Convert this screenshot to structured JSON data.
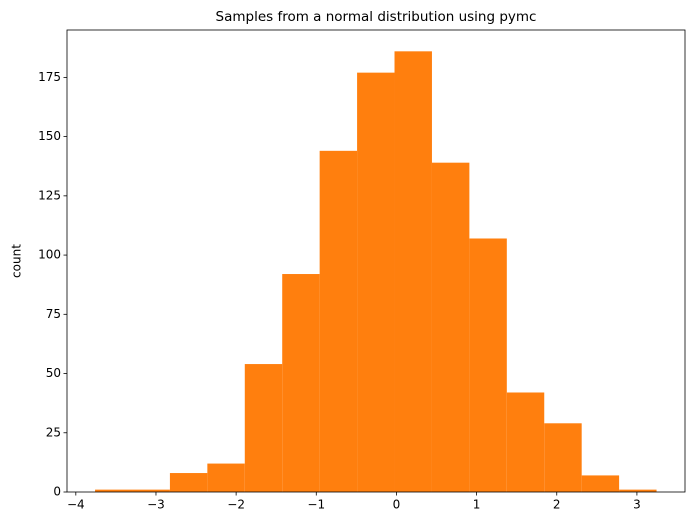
{
  "chart_data": {
    "type": "histogram",
    "title": "Samples from a normal distribution using pymc",
    "ylabel": "count",
    "bins": [
      -3.76,
      -3.293,
      -2.826,
      -2.359,
      -1.892,
      -1.425,
      -0.958,
      -0.491,
      -0.024,
      0.443,
      0.91,
      1.377,
      1.844,
      2.311,
      2.778,
      3.245
    ],
    "values": [
      1,
      1,
      8,
      12,
      54,
      92,
      144,
      177,
      186,
      139,
      107,
      42,
      29,
      7,
      1
    ],
    "color": "#ff7f0e",
    "xlim": [
      -4.11,
      3.6
    ],
    "xticks": [
      {
        "value": -4,
        "label": "−4"
      },
      {
        "value": -3,
        "label": "−3"
      },
      {
        "value": -2,
        "label": "−2"
      },
      {
        "value": -1,
        "label": "−1"
      },
      0,
      1,
      2,
      3
    ],
    "ylim": [
      0,
      195
    ],
    "yticks": [
      0,
      25,
      50,
      75,
      100,
      125,
      150,
      175
    ],
    "grid": false
  }
}
